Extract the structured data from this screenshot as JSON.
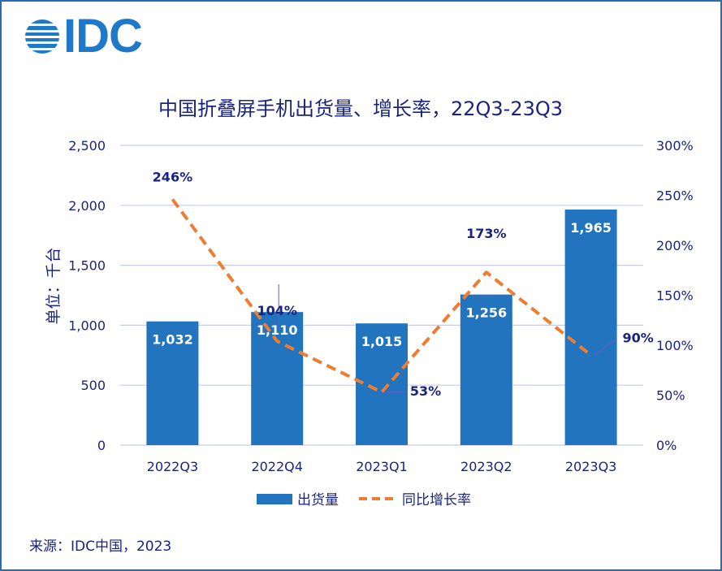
{
  "brand": {
    "name": "IDC",
    "color": "#1f78c8"
  },
  "source": "来源：IDC中国，2023",
  "colors": {
    "bar": "#2174bd",
    "line": "#ed7d31",
    "axis_text": "#1a237e",
    "grid": "#c8cbf0",
    "title": "#1a237e"
  },
  "chart_data": {
    "type": "bar",
    "title": "中国折叠屏手机出货量、增长率，22Q3-23Q3",
    "ylabel": "单位：千台",
    "categories": [
      "2022Q3",
      "2022Q4",
      "2023Q1",
      "2023Q2",
      "2023Q3"
    ],
    "ylim": [
      0,
      2500
    ],
    "yticks": [
      "0",
      "500",
      "1,000",
      "1,500",
      "2,000",
      "2,500"
    ],
    "y2lim": [
      0,
      300
    ],
    "y2ticks": [
      "0%",
      "50%",
      "100%",
      "150%",
      "200%",
      "250%",
      "300%"
    ],
    "grid": true,
    "legend_position": "bottom",
    "series": [
      {
        "name": "出货量",
        "type": "bar",
        "values": [
          1032,
          1110,
          1015,
          1256,
          1965
        ],
        "labels": [
          "1,032",
          "1,110",
          "1,015",
          "1,256",
          "1,965"
        ]
      },
      {
        "name": "同比增长率",
        "type": "line",
        "axis": "right",
        "style": "dashed",
        "values": [
          246,
          104,
          53,
          173,
          90
        ],
        "labels": [
          "246%",
          "104%",
          "53%",
          "173%",
          "90%"
        ]
      }
    ]
  }
}
